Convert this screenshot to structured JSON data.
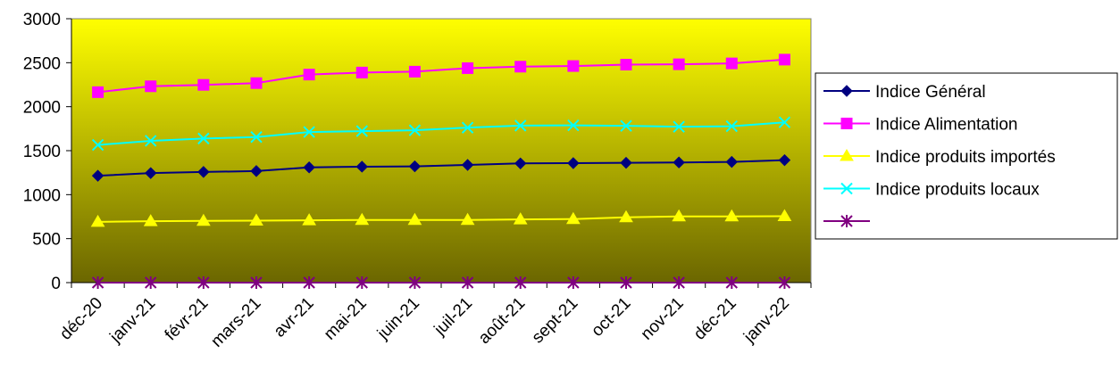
{
  "chart_data": {
    "type": "line",
    "categories": [
      "déc-20",
      "janv-21",
      "févr-21",
      "mars-21",
      "avr-21",
      "mai-21",
      "juin-21",
      "juil-21",
      "août-21",
      "sept-21",
      "oct-21",
      "nov-21",
      "déc-21",
      "janv-22"
    ],
    "ylim": [
      0,
      3000
    ],
    "yticks": [
      0,
      500,
      1000,
      1500,
      2000,
      2500,
      3000
    ],
    "grid": false,
    "legend_position": "right",
    "plot_background": "gradient yellow to olive",
    "series": [
      {
        "name": "Indice Général",
        "color": "#000080",
        "marker": "diamond",
        "values": [
          1215,
          1245,
          1258,
          1268,
          1310,
          1318,
          1322,
          1338,
          1355,
          1358,
          1362,
          1366,
          1372,
          1392
        ]
      },
      {
        "name": "Indice Alimentation",
        "color": "#FF00FF",
        "marker": "square",
        "values": [
          2165,
          2232,
          2248,
          2268,
          2365,
          2388,
          2398,
          2438,
          2455,
          2462,
          2478,
          2482,
          2492,
          2535
        ]
      },
      {
        "name": "Indice produits importés",
        "color": "#FFFF00",
        "marker": "triangle",
        "values": [
          690,
          698,
          702,
          705,
          708,
          712,
          712,
          712,
          718,
          722,
          742,
          752,
          752,
          755
        ]
      },
      {
        "name": "Indice produits locaux",
        "color": "#00FFFF",
        "marker": "x",
        "values": [
          1565,
          1612,
          1638,
          1655,
          1712,
          1722,
          1732,
          1762,
          1785,
          1788,
          1782,
          1772,
          1778,
          1822
        ]
      },
      {
        "name": "",
        "color": "#800080",
        "marker": "star",
        "values": [
          0,
          0,
          0,
          0,
          0,
          0,
          0,
          0,
          0,
          0,
          0,
          0,
          0,
          0
        ]
      }
    ]
  }
}
